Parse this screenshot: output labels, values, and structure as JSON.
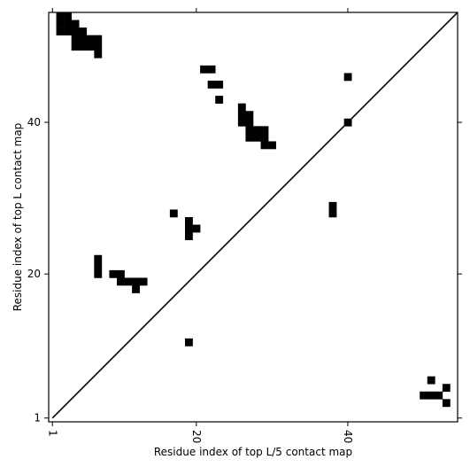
{
  "chart_data": {
    "type": "heatmap",
    "xlabel": "Residue index of top L/5 contact map",
    "ylabel": "Residue index of top L contact map",
    "xlim": [
      0.5,
      54.5
    ],
    "ylim": [
      0.5,
      54.5
    ],
    "x_ticks": [
      {
        "value": 1,
        "label": "1"
      },
      {
        "value": 20,
        "label": "20"
      },
      {
        "value": 40,
        "label": "40"
      }
    ],
    "y_ticks": [
      {
        "value": 1,
        "label": "1"
      },
      {
        "value": 20,
        "label": "20"
      },
      {
        "value": 40,
        "label": "40"
      }
    ],
    "diagonal": true,
    "cell_color": "#000000",
    "upper_triangle_contacts": [
      [
        2,
        54
      ],
      [
        3,
        54
      ],
      [
        2,
        53
      ],
      [
        3,
        53
      ],
      [
        4,
        53
      ],
      [
        2,
        52
      ],
      [
        3,
        52
      ],
      [
        4,
        52
      ],
      [
        5,
        52
      ],
      [
        4,
        51
      ],
      [
        5,
        51
      ],
      [
        6,
        51
      ],
      [
        7,
        51
      ],
      [
        4,
        50
      ],
      [
        5,
        50
      ],
      [
        6,
        50
      ],
      [
        7,
        50
      ],
      [
        7,
        49
      ],
      [
        21,
        47
      ],
      [
        22,
        47
      ],
      [
        40,
        46
      ],
      [
        22,
        45
      ],
      [
        23,
        45
      ],
      [
        23,
        43
      ],
      [
        26,
        42
      ],
      [
        26,
        41
      ],
      [
        27,
        41
      ],
      [
        26,
        40
      ],
      [
        27,
        40
      ],
      [
        40,
        40
      ],
      [
        27,
        39
      ],
      [
        28,
        39
      ],
      [
        29,
        39
      ],
      [
        27,
        38
      ],
      [
        28,
        38
      ],
      [
        29,
        38
      ],
      [
        29,
        37
      ],
      [
        30,
        37
      ]
    ],
    "lower_triangle_contacts": [
      [
        38,
        29
      ],
      [
        38,
        28
      ],
      [
        17,
        28
      ],
      [
        19,
        27
      ],
      [
        19,
        26
      ],
      [
        20,
        26
      ],
      [
        19,
        25
      ],
      [
        7,
        22
      ],
      [
        7,
        21
      ],
      [
        7,
        20
      ],
      [
        9,
        20
      ],
      [
        10,
        20
      ],
      [
        10,
        19
      ],
      [
        11,
        19
      ],
      [
        12,
        19
      ],
      [
        13,
        19
      ],
      [
        12,
        18
      ],
      [
        19,
        11
      ],
      [
        51,
        6
      ],
      [
        53,
        5
      ],
      [
        50,
        4
      ],
      [
        51,
        4
      ],
      [
        52,
        4
      ],
      [
        53,
        3
      ]
    ]
  }
}
